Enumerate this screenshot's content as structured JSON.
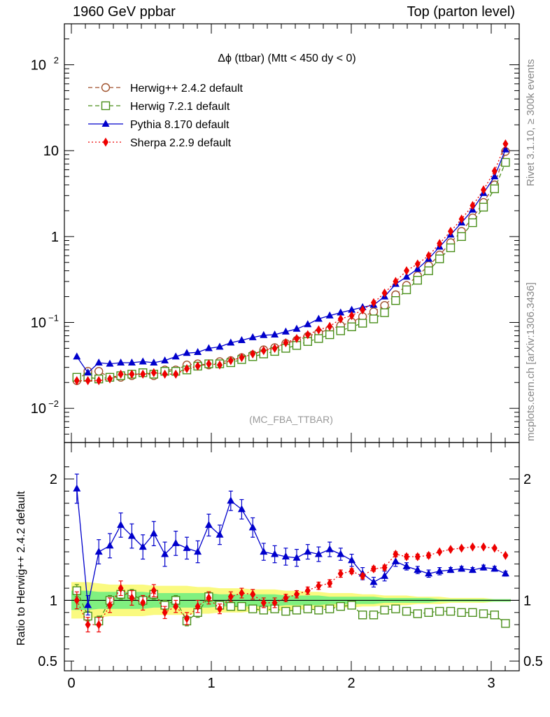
{
  "header": {
    "left": "1960 GeV ppbar",
    "right": "Top (parton level)"
  },
  "side_labels": {
    "rivet": "Rivet 3.1.10, ≥ 300k events",
    "mcplots": "mcplots.cern.ch [arXiv:1306.3436]"
  },
  "colors": {
    "herwig_pp": "#a0522d",
    "herwig_7": "#4a8f1a",
    "pythia": "#0000cc",
    "sherpa": "#ee0000",
    "band_inner": "#80f080",
    "band_outer": "#fafa80"
  },
  "chart_data": [
    {
      "type": "line",
      "title": "Δϕ (ttbar) (Mtt < 450 dy < 0)",
      "watermark": "(MC_FBA_TTBAR)",
      "yscale": "log",
      "ylim": [
        0.004,
        300
      ],
      "xlim": [
        -0.05,
        3.2
      ],
      "y_ticks": [
        {
          "value": 100,
          "label": "10",
          "sup": "2"
        },
        {
          "value": 10,
          "label": "10",
          "sup": ""
        },
        {
          "value": 1,
          "label": "1",
          "sup": ""
        },
        {
          "value": 0.1,
          "label": "10",
          "sup": "−1"
        },
        {
          "value": 0.01,
          "label": "10",
          "sup": "−2"
        }
      ],
      "legend_position": "top-left",
      "x": [
        0.039,
        0.118,
        0.196,
        0.275,
        0.353,
        0.432,
        0.511,
        0.589,
        0.668,
        0.746,
        0.825,
        0.903,
        0.982,
        1.06,
        1.139,
        1.217,
        1.296,
        1.374,
        1.453,
        1.532,
        1.61,
        1.689,
        1.767,
        1.846,
        1.924,
        2.003,
        2.081,
        2.16,
        2.238,
        2.317,
        2.395,
        2.474,
        2.553,
        2.631,
        2.71,
        2.788,
        2.867,
        2.945,
        3.024,
        3.102
      ],
      "series": [
        {
          "name": "Herwig++ 2.4.2 default",
          "color_key": "herwig_pp",
          "marker": "open-circle",
          "dash": "6,4",
          "values": [
            0.021,
            0.027,
            0.027,
            0.023,
            0.023,
            0.024,
            0.026,
            0.024,
            0.028,
            0.028,
            0.032,
            0.033,
            0.032,
            0.035,
            0.036,
            0.039,
            0.042,
            0.048,
            0.051,
            0.057,
            0.062,
            0.069,
            0.076,
            0.083,
            0.092,
            0.101,
            0.117,
            0.133,
            0.158,
            0.21,
            0.27,
            0.35,
            0.46,
            0.61,
            0.85,
            1.15,
            1.65,
            2.5,
            4.0,
            9.8
          ]
        },
        {
          "name": "Herwig 7.2.1 default",
          "color_key": "herwig_7",
          "marker": "open-square",
          "dash": "6,4",
          "values": [
            0.023,
            0.023,
            0.022,
            0.023,
            0.024,
            0.025,
            0.026,
            0.025,
            0.027,
            0.027,
            0.028,
            0.031,
            0.033,
            0.033,
            0.034,
            0.037,
            0.04,
            0.043,
            0.046,
            0.05,
            0.054,
            0.06,
            0.065,
            0.072,
            0.08,
            0.089,
            0.098,
            0.11,
            0.13,
            0.18,
            0.24,
            0.31,
            0.4,
            0.55,
            0.74,
            1.0,
            1.45,
            2.2,
            3.6,
            7.3
          ]
        },
        {
          "name": "Pythia 8.170 default",
          "color_key": "pythia",
          "marker": "filled-triangle",
          "dash": "",
          "values": [
            0.04,
            0.026,
            0.034,
            0.033,
            0.034,
            0.034,
            0.035,
            0.034,
            0.036,
            0.04,
            0.044,
            0.045,
            0.05,
            0.052,
            0.058,
            0.062,
            0.067,
            0.071,
            0.072,
            0.078,
            0.084,
            0.095,
            0.11,
            0.12,
            0.13,
            0.14,
            0.15,
            0.16,
            0.2,
            0.28,
            0.34,
            0.42,
            0.55,
            0.76,
            1.05,
            1.45,
            2.05,
            3.2,
            5.0,
            10.3
          ]
        },
        {
          "name": "Sherpa 2.2.9 default",
          "color_key": "sherpa",
          "marker": "filled-diamond",
          "dash": "2,3",
          "values": [
            0.021,
            0.021,
            0.021,
            0.022,
            0.025,
            0.025,
            0.025,
            0.026,
            0.025,
            0.025,
            0.029,
            0.031,
            0.033,
            0.032,
            0.036,
            0.039,
            0.043,
            0.047,
            0.05,
            0.058,
            0.065,
            0.072,
            0.082,
            0.09,
            0.11,
            0.12,
            0.14,
            0.17,
            0.22,
            0.3,
            0.4,
            0.48,
            0.6,
            0.83,
            1.15,
            1.6,
            2.3,
            3.5,
            5.8,
            12.0
          ]
        }
      ]
    },
    {
      "type": "line",
      "ylabel": "Ratio to Herwig++ 2.4.2 default",
      "ylim": [
        0.42,
        2.3
      ],
      "xlim": [
        -0.05,
        3.2
      ],
      "y_ticks": [
        {
          "value": 2,
          "label": "2"
        },
        {
          "value": 1,
          "label": "1"
        },
        {
          "value": 0.5,
          "label": "0.5"
        }
      ],
      "x_ticks": [
        {
          "value": 0,
          "label": "0"
        },
        {
          "value": 1,
          "label": "1"
        },
        {
          "value": 2,
          "label": "2"
        },
        {
          "value": 3,
          "label": "3"
        }
      ],
      "band_inner_halfwidth": [
        0.08,
        0.08,
        0.07,
        0.07,
        0.07,
        0.07,
        0.07,
        0.06,
        0.06,
        0.06,
        0.06,
        0.06,
        0.06,
        0.05,
        0.05,
        0.05,
        0.05,
        0.05,
        0.05,
        0.04,
        0.04,
        0.04,
        0.04,
        0.03,
        0.03,
        0.03,
        0.03,
        0.03,
        0.02,
        0.02,
        0.02,
        0.02,
        0.02,
        0.01,
        0.01,
        0.01,
        0.01,
        0.01,
        0.01,
        0.01
      ],
      "band_outer_halfwidth": [
        0.15,
        0.15,
        0.14,
        0.13,
        0.13,
        0.13,
        0.13,
        0.12,
        0.12,
        0.12,
        0.12,
        0.11,
        0.11,
        0.1,
        0.1,
        0.1,
        0.09,
        0.09,
        0.09,
        0.08,
        0.08,
        0.07,
        0.07,
        0.06,
        0.06,
        0.06,
        0.05,
        0.05,
        0.04,
        0.04,
        0.04,
        0.03,
        0.03,
        0.03,
        0.02,
        0.02,
        0.02,
        0.02,
        0.01,
        0.01
      ],
      "series": [
        {
          "name": "Herwig 7.2.1 default",
          "color_key": "herwig_7",
          "marker": "open-square",
          "dash": "6,4",
          "values": [
            1.08,
            0.87,
            0.83,
            1.0,
            1.05,
            1.05,
            1.0,
            1.05,
            0.96,
            1.0,
            0.83,
            0.9,
            1.03,
            0.96,
            0.95,
            0.95,
            0.93,
            0.92,
            0.93,
            0.91,
            0.92,
            0.93,
            0.92,
            0.93,
            0.95,
            0.96,
            0.88,
            0.88,
            0.92,
            0.93,
            0.91,
            0.89,
            0.9,
            0.91,
            0.91,
            0.9,
            0.9,
            0.89,
            0.88,
            0.81
          ]
        },
        {
          "name": "Pythia 8.170 default",
          "color_key": "pythia",
          "marker": "filled-triangle",
          "dash": "",
          "values": [
            1.92,
            0.96,
            1.4,
            1.45,
            1.62,
            1.53,
            1.44,
            1.55,
            1.38,
            1.47,
            1.43,
            1.4,
            1.62,
            1.54,
            1.82,
            1.75,
            1.6,
            1.4,
            1.38,
            1.36,
            1.35,
            1.4,
            1.38,
            1.42,
            1.38,
            1.33,
            1.22,
            1.15,
            1.2,
            1.32,
            1.28,
            1.25,
            1.22,
            1.24,
            1.25,
            1.26,
            1.25,
            1.27,
            1.26,
            1.22
          ]
        },
        {
          "name": "Sherpa 2.2.9 default",
          "color_key": "sherpa",
          "marker": "filled-diamond",
          "dash": "2,3",
          "values": [
            1.0,
            0.8,
            0.8,
            0.96,
            1.1,
            1.02,
            0.98,
            1.08,
            0.9,
            0.95,
            0.85,
            0.95,
            1.02,
            0.93,
            1.03,
            1.06,
            1.05,
            0.98,
            0.98,
            1.02,
            1.05,
            1.08,
            1.12,
            1.14,
            1.22,
            1.24,
            1.2,
            1.26,
            1.27,
            1.38,
            1.36,
            1.36,
            1.37,
            1.4,
            1.42,
            1.43,
            1.44,
            1.44,
            1.43,
            1.37
          ]
        }
      ],
      "errors": {
        "Pythia 8.170 default": [
          0.12,
          0.08,
          0.1,
          0.1,
          0.1,
          0.1,
          0.1,
          0.1,
          0.1,
          0.1,
          0.09,
          0.09,
          0.09,
          0.08,
          0.08,
          0.08,
          0.08,
          0.07,
          0.07,
          0.07,
          0.07,
          0.06,
          0.06,
          0.06,
          0.05,
          0.05,
          0.05,
          0.04,
          0.04,
          0.04,
          0.03,
          0.03,
          0.03,
          0.03,
          0.02,
          0.02,
          0.02,
          0.02,
          0.02,
          0.02
        ],
        "Sherpa 2.2.9 default": [
          0.07,
          0.06,
          0.06,
          0.06,
          0.06,
          0.06,
          0.06,
          0.05,
          0.05,
          0.05,
          0.05,
          0.05,
          0.05,
          0.04,
          0.04,
          0.04,
          0.04,
          0.04,
          0.04,
          0.03,
          0.03,
          0.03,
          0.03,
          0.03,
          0.03,
          0.02,
          0.02,
          0.02,
          0.02,
          0.02,
          0.02,
          0.02,
          0.02,
          0.01,
          0.01,
          0.01,
          0.01,
          0.01,
          0.01,
          0.01
        ],
        "Herwig 7.2.1 default": [
          0.05,
          0.04,
          0.04,
          0.04,
          0.04,
          0.04,
          0.04,
          0.04,
          0.04,
          0.04,
          0.04,
          0.04,
          0.04,
          0.03,
          0.03,
          0.03,
          0.03,
          0.03,
          0.03,
          0.03,
          0.02,
          0.02,
          0.02,
          0.02,
          0.02,
          0.02,
          0.02,
          0.02,
          0.02,
          0.02,
          0.01,
          0.01,
          0.01,
          0.01,
          0.01,
          0.01,
          0.01,
          0.01,
          0.01,
          0.01
        ]
      }
    }
  ]
}
